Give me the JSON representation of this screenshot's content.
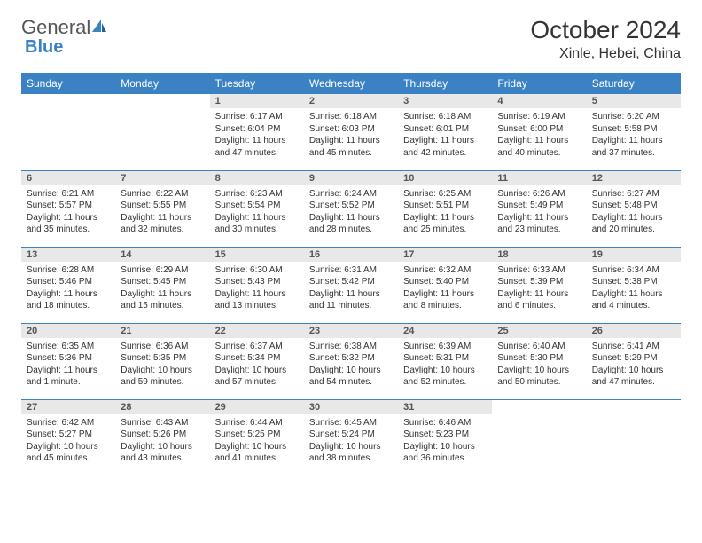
{
  "logo": {
    "text_general": "General",
    "text_blue": "Blue"
  },
  "header": {
    "title": "October 2024",
    "location": "Xinle, Hebei, China"
  },
  "colors": {
    "accent": "#3b82c4",
    "daynum_bg": "#e8e8e8",
    "text": "#333333"
  },
  "weekdays": [
    "Sunday",
    "Monday",
    "Tuesday",
    "Wednesday",
    "Thursday",
    "Friday",
    "Saturday"
  ],
  "weeks": [
    [
      {
        "empty": true
      },
      {
        "empty": true
      },
      {
        "num": "1",
        "sunrise": "Sunrise: 6:17 AM",
        "sunset": "Sunset: 6:04 PM",
        "daylight": "Daylight: 11 hours and 47 minutes."
      },
      {
        "num": "2",
        "sunrise": "Sunrise: 6:18 AM",
        "sunset": "Sunset: 6:03 PM",
        "daylight": "Daylight: 11 hours and 45 minutes."
      },
      {
        "num": "3",
        "sunrise": "Sunrise: 6:18 AM",
        "sunset": "Sunset: 6:01 PM",
        "daylight": "Daylight: 11 hours and 42 minutes."
      },
      {
        "num": "4",
        "sunrise": "Sunrise: 6:19 AM",
        "sunset": "Sunset: 6:00 PM",
        "daylight": "Daylight: 11 hours and 40 minutes."
      },
      {
        "num": "5",
        "sunrise": "Sunrise: 6:20 AM",
        "sunset": "Sunset: 5:58 PM",
        "daylight": "Daylight: 11 hours and 37 minutes."
      }
    ],
    [
      {
        "num": "6",
        "sunrise": "Sunrise: 6:21 AM",
        "sunset": "Sunset: 5:57 PM",
        "daylight": "Daylight: 11 hours and 35 minutes."
      },
      {
        "num": "7",
        "sunrise": "Sunrise: 6:22 AM",
        "sunset": "Sunset: 5:55 PM",
        "daylight": "Daylight: 11 hours and 32 minutes."
      },
      {
        "num": "8",
        "sunrise": "Sunrise: 6:23 AM",
        "sunset": "Sunset: 5:54 PM",
        "daylight": "Daylight: 11 hours and 30 minutes."
      },
      {
        "num": "9",
        "sunrise": "Sunrise: 6:24 AM",
        "sunset": "Sunset: 5:52 PM",
        "daylight": "Daylight: 11 hours and 28 minutes."
      },
      {
        "num": "10",
        "sunrise": "Sunrise: 6:25 AM",
        "sunset": "Sunset: 5:51 PM",
        "daylight": "Daylight: 11 hours and 25 minutes."
      },
      {
        "num": "11",
        "sunrise": "Sunrise: 6:26 AM",
        "sunset": "Sunset: 5:49 PM",
        "daylight": "Daylight: 11 hours and 23 minutes."
      },
      {
        "num": "12",
        "sunrise": "Sunrise: 6:27 AM",
        "sunset": "Sunset: 5:48 PM",
        "daylight": "Daylight: 11 hours and 20 minutes."
      }
    ],
    [
      {
        "num": "13",
        "sunrise": "Sunrise: 6:28 AM",
        "sunset": "Sunset: 5:46 PM",
        "daylight": "Daylight: 11 hours and 18 minutes."
      },
      {
        "num": "14",
        "sunrise": "Sunrise: 6:29 AM",
        "sunset": "Sunset: 5:45 PM",
        "daylight": "Daylight: 11 hours and 15 minutes."
      },
      {
        "num": "15",
        "sunrise": "Sunrise: 6:30 AM",
        "sunset": "Sunset: 5:43 PM",
        "daylight": "Daylight: 11 hours and 13 minutes."
      },
      {
        "num": "16",
        "sunrise": "Sunrise: 6:31 AM",
        "sunset": "Sunset: 5:42 PM",
        "daylight": "Daylight: 11 hours and 11 minutes."
      },
      {
        "num": "17",
        "sunrise": "Sunrise: 6:32 AM",
        "sunset": "Sunset: 5:40 PM",
        "daylight": "Daylight: 11 hours and 8 minutes."
      },
      {
        "num": "18",
        "sunrise": "Sunrise: 6:33 AM",
        "sunset": "Sunset: 5:39 PM",
        "daylight": "Daylight: 11 hours and 6 minutes."
      },
      {
        "num": "19",
        "sunrise": "Sunrise: 6:34 AM",
        "sunset": "Sunset: 5:38 PM",
        "daylight": "Daylight: 11 hours and 4 minutes."
      }
    ],
    [
      {
        "num": "20",
        "sunrise": "Sunrise: 6:35 AM",
        "sunset": "Sunset: 5:36 PM",
        "daylight": "Daylight: 11 hours and 1 minute."
      },
      {
        "num": "21",
        "sunrise": "Sunrise: 6:36 AM",
        "sunset": "Sunset: 5:35 PM",
        "daylight": "Daylight: 10 hours and 59 minutes."
      },
      {
        "num": "22",
        "sunrise": "Sunrise: 6:37 AM",
        "sunset": "Sunset: 5:34 PM",
        "daylight": "Daylight: 10 hours and 57 minutes."
      },
      {
        "num": "23",
        "sunrise": "Sunrise: 6:38 AM",
        "sunset": "Sunset: 5:32 PM",
        "daylight": "Daylight: 10 hours and 54 minutes."
      },
      {
        "num": "24",
        "sunrise": "Sunrise: 6:39 AM",
        "sunset": "Sunset: 5:31 PM",
        "daylight": "Daylight: 10 hours and 52 minutes."
      },
      {
        "num": "25",
        "sunrise": "Sunrise: 6:40 AM",
        "sunset": "Sunset: 5:30 PM",
        "daylight": "Daylight: 10 hours and 50 minutes."
      },
      {
        "num": "26",
        "sunrise": "Sunrise: 6:41 AM",
        "sunset": "Sunset: 5:29 PM",
        "daylight": "Daylight: 10 hours and 47 minutes."
      }
    ],
    [
      {
        "num": "27",
        "sunrise": "Sunrise: 6:42 AM",
        "sunset": "Sunset: 5:27 PM",
        "daylight": "Daylight: 10 hours and 45 minutes."
      },
      {
        "num": "28",
        "sunrise": "Sunrise: 6:43 AM",
        "sunset": "Sunset: 5:26 PM",
        "daylight": "Daylight: 10 hours and 43 minutes."
      },
      {
        "num": "29",
        "sunrise": "Sunrise: 6:44 AM",
        "sunset": "Sunset: 5:25 PM",
        "daylight": "Daylight: 10 hours and 41 minutes."
      },
      {
        "num": "30",
        "sunrise": "Sunrise: 6:45 AM",
        "sunset": "Sunset: 5:24 PM",
        "daylight": "Daylight: 10 hours and 38 minutes."
      },
      {
        "num": "31",
        "sunrise": "Sunrise: 6:46 AM",
        "sunset": "Sunset: 5:23 PM",
        "daylight": "Daylight: 10 hours and 36 minutes."
      },
      {
        "empty": true
      },
      {
        "empty": true
      }
    ]
  ]
}
